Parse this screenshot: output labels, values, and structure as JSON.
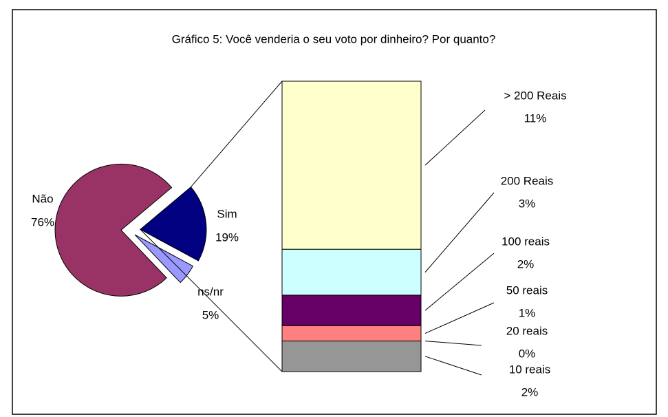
{
  "chart_data": {
    "type": "bar_of_pie",
    "title": "Gráfico 5: Você venderia o seu voto por dinheiro? Por quanto?",
    "categories": [
      "Não",
      "Sim",
      "ns/nr"
    ],
    "values": [
      76,
      19,
      5
    ],
    "value_labels": [
      "76%",
      "19%",
      "5%"
    ],
    "colors": [
      "#993366",
      "#000080",
      "#9999ff"
    ],
    "breakdown": {
      "categories": [
        "> 200 Reais",
        "200 Reais",
        "100 reais",
        "50 reais",
        "20 reais",
        "10 reais"
      ],
      "values": [
        11,
        3,
        2,
        1,
        0,
        2
      ],
      "value_labels": [
        "11%",
        "3%",
        "2%",
        "1%",
        "0%",
        "2%"
      ],
      "colors": [
        "#ffffcc",
        "#ccffff",
        "#660066",
        "#ff8080",
        "#0066cc",
        "#969696"
      ]
    }
  }
}
